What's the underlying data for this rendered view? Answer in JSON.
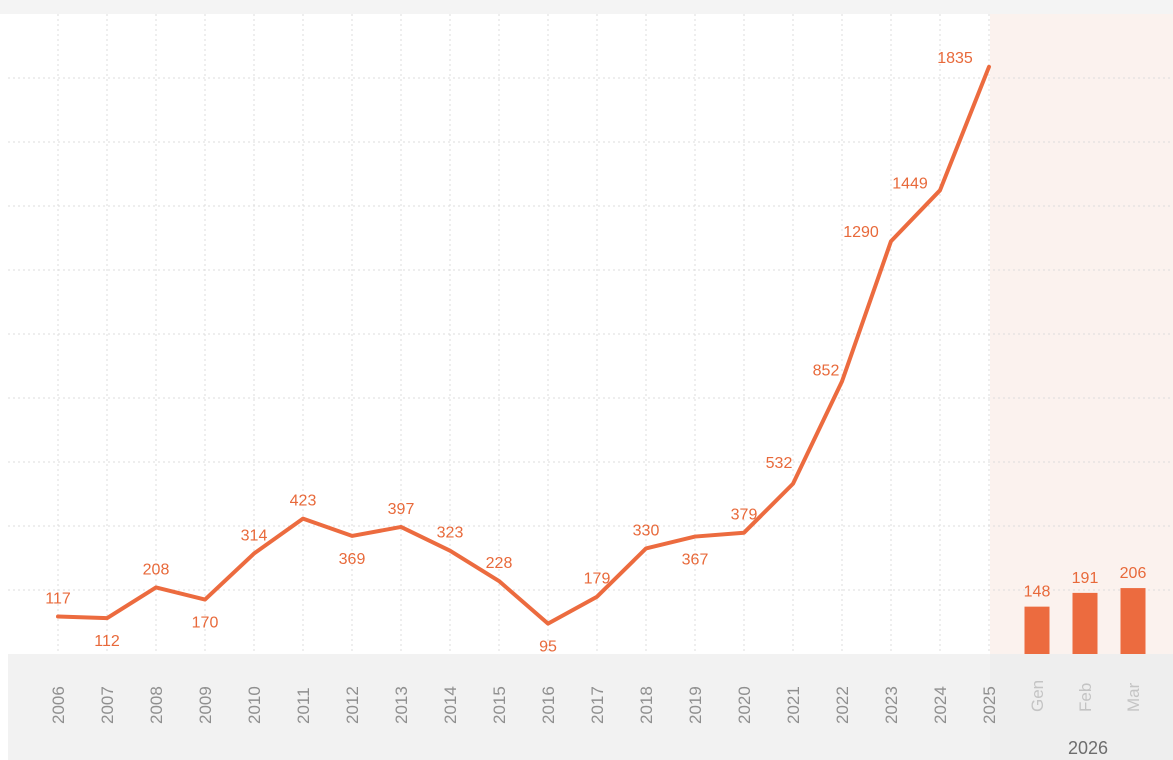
{
  "chart_data": {
    "type": "line",
    "title": "",
    "xlabel": "",
    "ylabel": "",
    "color": "#ec6b3f",
    "grid": true,
    "ylim": [
      0,
      2000
    ],
    "annual": {
      "categories": [
        "2006",
        "2007",
        "2008",
        "2009",
        "2010",
        "2011",
        "2012",
        "2013",
        "2014",
        "2015",
        "2016",
        "2017",
        "2018",
        "2019",
        "2020",
        "2021",
        "2022",
        "2023",
        "2024",
        "2025"
      ],
      "values": [
        117,
        112,
        208,
        170,
        314,
        423,
        369,
        397,
        323,
        228,
        95,
        179,
        330,
        367,
        379,
        532,
        852,
        1290,
        1449,
        1835
      ]
    },
    "monthly": {
      "type": "bar",
      "group_label": "2026",
      "categories": [
        "Gen",
        "Feb",
        "Mar"
      ],
      "values": [
        148,
        191,
        206
      ]
    }
  }
}
